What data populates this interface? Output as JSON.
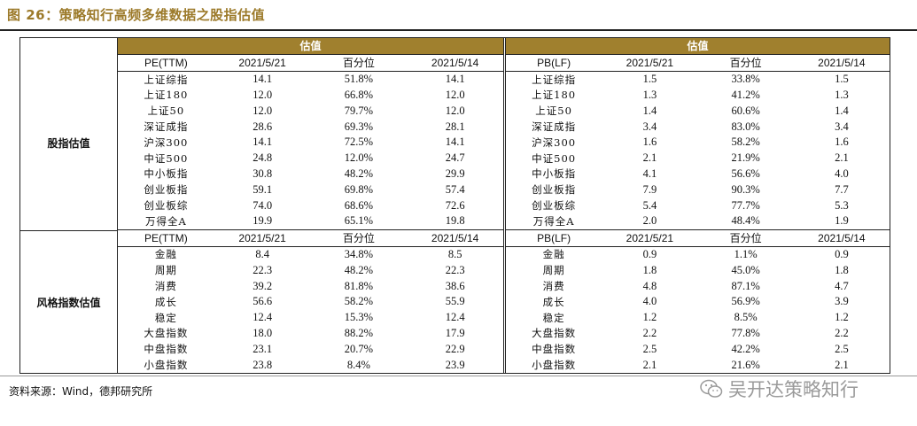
{
  "title": "图 26：策略知行高频多维数据之股指估值",
  "left_panel": {
    "header": "估值",
    "sections": [
      {
        "side_label": "股指估值",
        "columns": [
          "PE(TTM)",
          "2021/5/21",
          "百分位",
          "2021/5/14"
        ],
        "rows": [
          [
            "上证综指",
            "14.1",
            "51.8%",
            "14.1"
          ],
          [
            "上证180",
            "12.0",
            "66.8%",
            "12.0"
          ],
          [
            "上证50",
            "12.0",
            "79.7%",
            "12.0"
          ],
          [
            "深证成指",
            "28.6",
            "69.3%",
            "28.1"
          ],
          [
            "沪深300",
            "14.1",
            "72.5%",
            "14.1"
          ],
          [
            "中证500",
            "24.8",
            "12.0%",
            "24.7"
          ],
          [
            "中小板指",
            "30.8",
            "48.2%",
            "29.9"
          ],
          [
            "创业板指",
            "59.1",
            "69.8%",
            "57.4"
          ],
          [
            "创业板综",
            "74.0",
            "68.6%",
            "72.6"
          ],
          [
            "万得全A",
            "19.9",
            "65.1%",
            "19.8"
          ]
        ]
      },
      {
        "side_label": "风格指数估值",
        "columns": [
          "PE(TTM)",
          "2021/5/21",
          "百分位",
          "2021/5/14"
        ],
        "rows": [
          [
            "金融",
            "8.4",
            "34.8%",
            "8.5"
          ],
          [
            "周期",
            "22.3",
            "48.2%",
            "22.3"
          ],
          [
            "消费",
            "39.2",
            "81.8%",
            "38.6"
          ],
          [
            "成长",
            "56.6",
            "58.2%",
            "55.9"
          ],
          [
            "稳定",
            "12.4",
            "15.3%",
            "12.4"
          ],
          [
            "大盘指数",
            "18.0",
            "88.2%",
            "17.9"
          ],
          [
            "中盘指数",
            "23.1",
            "20.7%",
            "22.9"
          ],
          [
            "小盘指数",
            "23.8",
            "8.4%",
            "23.9"
          ]
        ]
      }
    ]
  },
  "right_panel": {
    "header": "估值",
    "sections": [
      {
        "columns": [
          "PB(LF)",
          "2021/5/21",
          "百分位",
          "2021/5/14"
        ],
        "rows": [
          [
            "上证综指",
            "1.5",
            "33.8%",
            "1.5"
          ],
          [
            "上证180",
            "1.3",
            "41.2%",
            "1.3"
          ],
          [
            "上证50",
            "1.4",
            "60.6%",
            "1.4"
          ],
          [
            "深证成指",
            "3.4",
            "83.0%",
            "3.4"
          ],
          [
            "沪深300",
            "1.6",
            "58.2%",
            "1.6"
          ],
          [
            "中证500",
            "2.1",
            "21.9%",
            "2.1"
          ],
          [
            "中小板指",
            "4.1",
            "56.6%",
            "4.0"
          ],
          [
            "创业板指",
            "7.9",
            "90.3%",
            "7.7"
          ],
          [
            "创业板综",
            "5.4",
            "77.7%",
            "5.3"
          ],
          [
            "万得全A",
            "2.0",
            "48.4%",
            "1.9"
          ]
        ]
      },
      {
        "columns": [
          "PB(LF)",
          "2021/5/21",
          "百分位",
          "2021/5/14"
        ],
        "rows": [
          [
            "金融",
            "0.9",
            "1.1%",
            "0.9"
          ],
          [
            "周期",
            "1.8",
            "45.0%",
            "1.8"
          ],
          [
            "消费",
            "4.8",
            "87.1%",
            "4.7"
          ],
          [
            "成长",
            "4.0",
            "56.9%",
            "3.9"
          ],
          [
            "稳定",
            "1.2",
            "8.5%",
            "1.2"
          ],
          [
            "大盘指数",
            "2.2",
            "77.8%",
            "2.2"
          ],
          [
            "中盘指数",
            "2.5",
            "42.2%",
            "2.5"
          ],
          [
            "小盘指数",
            "2.1",
            "21.6%",
            "2.1"
          ]
        ]
      }
    ]
  },
  "source": "资料来源：Wind，德邦研究所",
  "watermark": "吴开达策略知行",
  "colors": {
    "accent": "#a0802e",
    "title": "#9c7a2a"
  }
}
